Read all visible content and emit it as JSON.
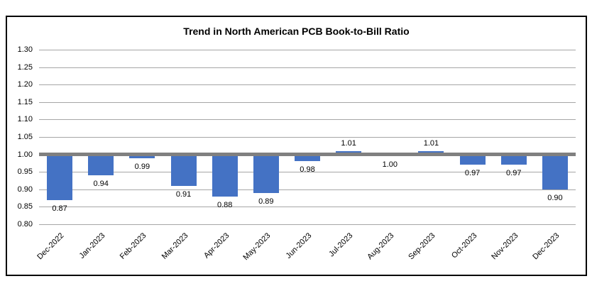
{
  "chart_data": {
    "type": "bar",
    "title": "Trend in North American PCB Book-to-Bill Ratio",
    "categories": [
      "Dec-2022",
      "Jan-2023",
      "Feb-2023",
      "Mar-2023",
      "Apr-2023",
      "May-2023",
      "Jun-2023",
      "Jul-2023",
      "Aug-2023",
      "Sep-2023",
      "Oct-2023",
      "Nov-2023",
      "Dec-2023"
    ],
    "values": [
      0.87,
      0.94,
      0.99,
      0.91,
      0.88,
      0.89,
      0.98,
      1.01,
      1.0,
      1.01,
      0.97,
      0.97,
      0.9
    ],
    "data_labels": [
      "0.87",
      "0.94",
      "0.99",
      "0.91",
      "0.88",
      "0.89",
      "0.98",
      "1.01",
      "1.00",
      "1.01",
      "0.97",
      "0.97",
      "0.90"
    ],
    "xlabel": "",
    "ylabel": "",
    "ylim": [
      0.8,
      1.3
    ],
    "ytick_step": 0.05,
    "baseline": 1.0,
    "grid": true,
    "legend": "none",
    "colors": {
      "bar": "#4472C4",
      "baseline": "#808080",
      "gridline": "#A6A6A6",
      "border": "#000000",
      "text": "#000000",
      "background": "#FFFFFF"
    }
  }
}
